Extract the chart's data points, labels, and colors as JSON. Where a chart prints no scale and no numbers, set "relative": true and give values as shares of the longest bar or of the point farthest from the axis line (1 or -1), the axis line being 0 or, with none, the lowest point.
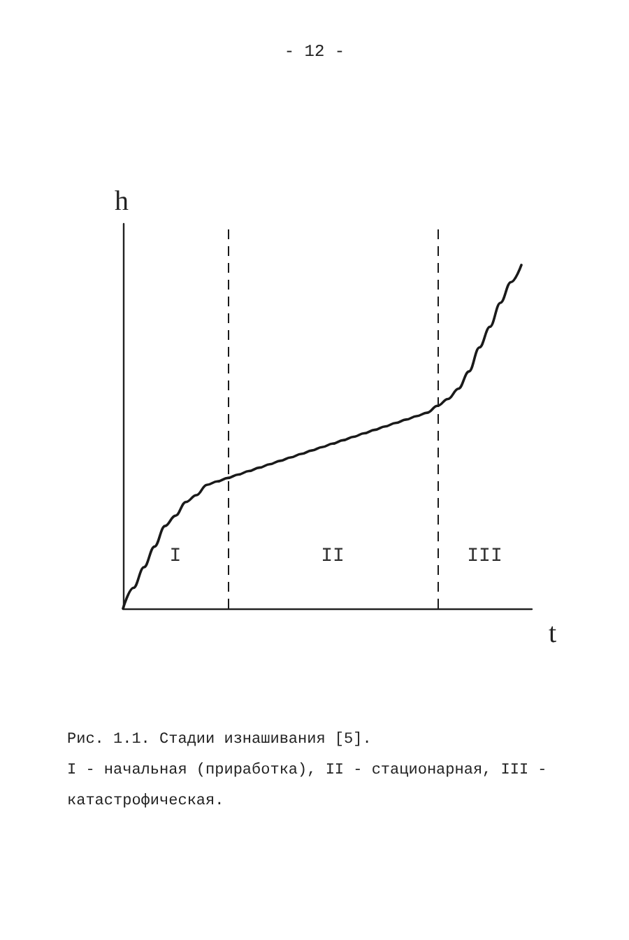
{
  "chart_data": {
    "type": "line",
    "relative": true,
    "xlabel": "t",
    "ylabel": "h",
    "color": "#1a1a1a",
    "line_style": "solid",
    "categories": [
      null,
      null,
      null,
      null,
      null,
      null,
      null,
      null,
      null,
      null,
      null,
      null,
      null,
      null,
      null,
      null,
      null,
      null,
      null,
      null,
      null,
      null,
      null,
      null,
      null,
      null,
      null,
      null,
      null,
      null,
      null,
      null,
      null,
      null,
      null,
      null,
      null,
      null,
      null,
      null
    ],
    "values": [
      0,
      0.06,
      0.12,
      0.18,
      0.24,
      0.27,
      0.31,
      0.33,
      0.36,
      0.37,
      0.38,
      0.39,
      0.4,
      0.41,
      0.42,
      0.43,
      0.44,
      0.45,
      0.46,
      0.47,
      0.48,
      0.49,
      0.5,
      0.51,
      0.52,
      0.53,
      0.54,
      0.55,
      0.56,
      0.57,
      0.59,
      0.61,
      0.64,
      0.69,
      0.76,
      0.82,
      0.89,
      0.95,
      1,
      null
    ],
    "title": "- 12 -",
    "annotations": [
      "I",
      "II",
      "III",
      "Рис. 1.1. Стадии изнашивания [5].",
      "I - начальная (приработка), II - стационарная, III - катастрофическая."
    ]
  }
}
